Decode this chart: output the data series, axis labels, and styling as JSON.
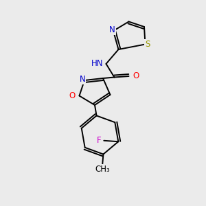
{
  "background_color": "#ebebeb",
  "bond_color": "#000000",
  "atom_colors": {
    "N": "#0000cc",
    "O": "#ff0000",
    "S": "#999900",
    "F": "#cc00cc",
    "C": "#000000",
    "H": "#555555"
  },
  "lw": 1.4,
  "fs": 8.5
}
